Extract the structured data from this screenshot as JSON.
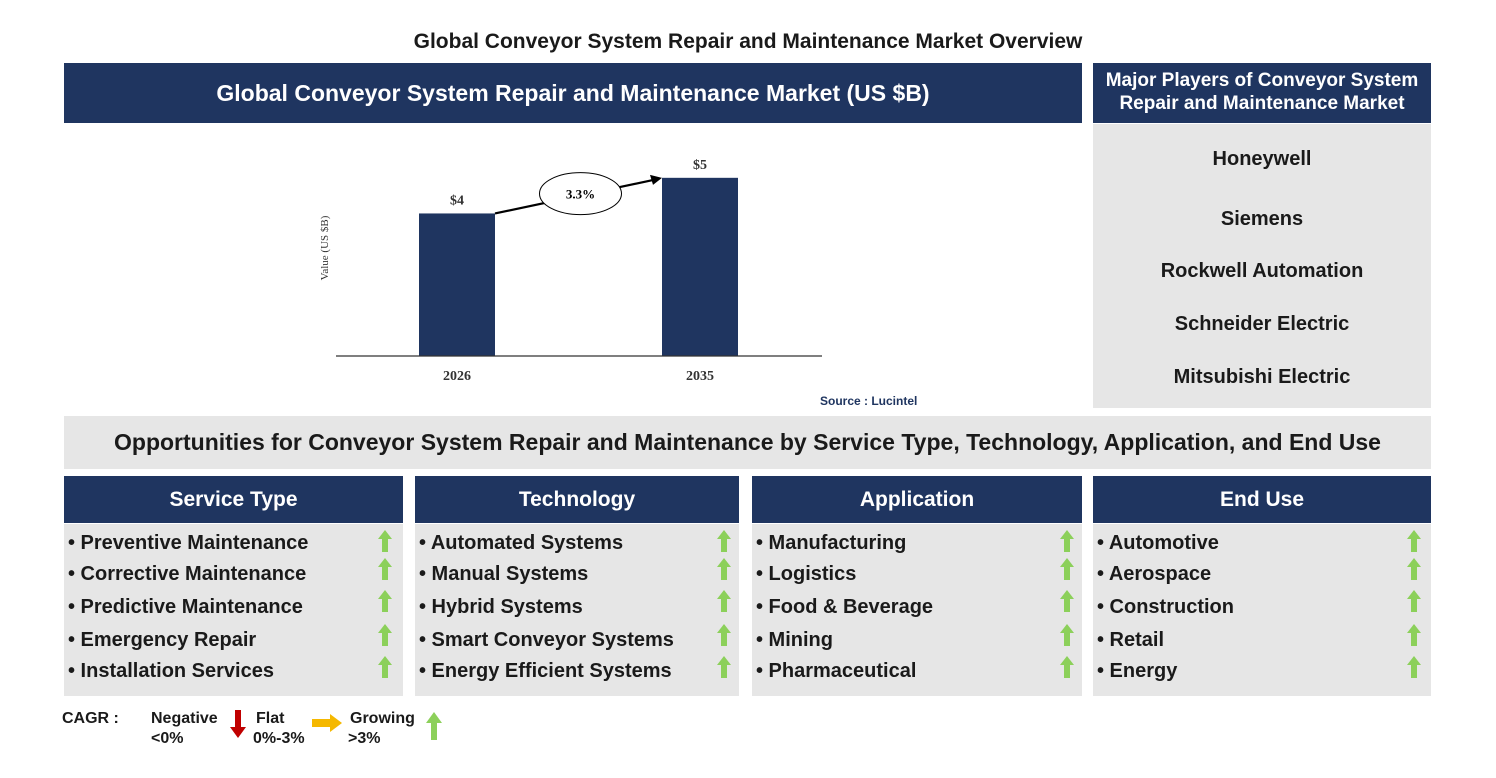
{
  "page_title": "Global Conveyor System Repair and Maintenance Market Overview",
  "chart_header": "Global Conveyor System Repair and Maintenance Market (US $B)",
  "chart_data": {
    "type": "bar",
    "categories": [
      "2026",
      "2035"
    ],
    "values": [
      4,
      5
    ],
    "data_labels": [
      "$4",
      "$5"
    ],
    "ylabel": "Value (US $B)",
    "ylim": [
      0,
      5.5
    ],
    "cagr_label": "3.3%",
    "bar_color": "#1f3560",
    "grid": false
  },
  "source": "Source : Lucintel",
  "players": {
    "header": "Major Players of Conveyor System Repair and Maintenance Market",
    "items": [
      "Honeywell",
      "Siemens",
      "Rockwell Automation",
      "Schneider Electric",
      "Mitsubishi Electric"
    ]
  },
  "opportunities_title": "Opportunities for Conveyor System Repair and Maintenance by Service Type, Technology, Application, and End Use",
  "columns": [
    {
      "title": "Service Type",
      "items": [
        "• Preventive Maintenance",
        "• Corrective Maintenance",
        "• Predictive Maintenance",
        "• Emergency Repair",
        "• Installation Services"
      ]
    },
    {
      "title": "Technology",
      "items": [
        "• Automated Systems",
        "• Manual Systems",
        "• Hybrid Systems",
        "• Smart Conveyor Systems",
        "• Energy Efficient Systems"
      ]
    },
    {
      "title": "Application",
      "items": [
        "• Manufacturing",
        "• Logistics",
        "• Food & Beverage",
        "• Mining",
        "• Pharmaceutical"
      ]
    },
    {
      "title": "End Use",
      "items": [
        "• Automotive",
        "• Aerospace",
        "• Construction",
        "• Retail",
        "• Energy"
      ]
    }
  ],
  "legend": {
    "cagr_label": "CAGR :",
    "negative": "Negative",
    "negative_range": "<0%",
    "flat": "Flat",
    "flat_range": "0%-3%",
    "growing": "Growing",
    "growing_range": ">3%"
  },
  "colors": {
    "navy": "#1f3560",
    "panel_gray": "#e6e6e6",
    "growing_green": "#8cd05a",
    "negative_red": "#c00000",
    "flat_yellow": "#f5b800"
  }
}
